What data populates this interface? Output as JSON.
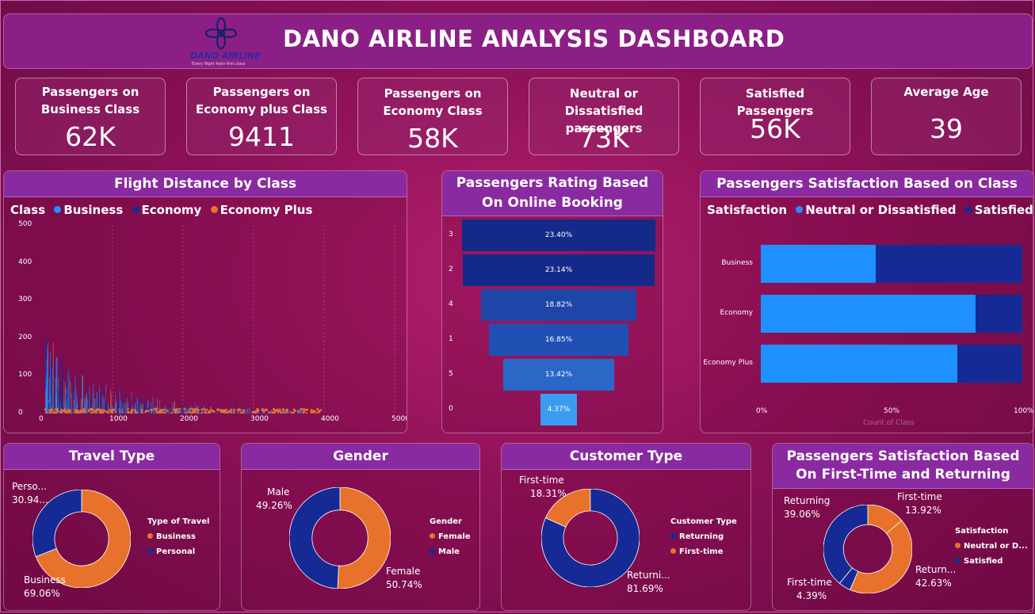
{
  "header": {
    "title": "DANO AIRLINE ANALYSIS DASHBOARD",
    "logo_name": "DANO AIRLINE",
    "logo_tagline": "Every flight feels first class"
  },
  "kpis": [
    {
      "label": "Passengers on Business Class",
      "value": "62K"
    },
    {
      "label": "Passengers on Economy plus Class",
      "value": "9411"
    },
    {
      "label": "Passengers on Economy Class",
      "value": "58K"
    },
    {
      "label": "Neutral or Dissatisfied passengers",
      "value": "73K"
    },
    {
      "label": "Satisfied Passengers",
      "value": "56K"
    },
    {
      "label": "Average Age",
      "value": "39"
    }
  ],
  "flight_distance": {
    "title": "Flight Distance by Class",
    "legend_title": "Class",
    "legend": [
      {
        "label": "Business",
        "color": "#1e90ff"
      },
      {
        "label": "Economy",
        "color": "#1a2a8c"
      },
      {
        "label": "Economy Plus",
        "color": "#e8722c"
      }
    ],
    "y_ticks": [
      "500",
      "400",
      "300",
      "200",
      "100",
      "0"
    ],
    "x_ticks": [
      "0",
      "1000",
      "2000",
      "3000",
      "4000",
      "5000"
    ]
  },
  "online_booking": {
    "title": "Passengers Rating Based On Online Booking",
    "stages": [
      {
        "category": "3",
        "value": "23.40%",
        "color": "#142a88"
      },
      {
        "category": "2",
        "value": "23.14%",
        "color": "#142a88"
      },
      {
        "category": "4",
        "value": "18.82%",
        "color": "#1e46a8"
      },
      {
        "category": "1",
        "value": "16.85%",
        "color": "#2150b4"
      },
      {
        "category": "5",
        "value": "13.42%",
        "color": "#2a68c8"
      },
      {
        "category": "0",
        "value": "4.37%",
        "color": "#3a9cf0"
      }
    ]
  },
  "satisfaction_class": {
    "title": "Passengers Satisfaction Based on Class",
    "legend_title": "Satisfaction",
    "legend": [
      {
        "label": "Neutral or Dissatisfied",
        "color": "#1e90ff"
      },
      {
        "label": "Satisfied",
        "color": "#152a95"
      }
    ],
    "rows": [
      {
        "category": "Business",
        "neutral_pct": 44
      },
      {
        "category": "Economy",
        "neutral_pct": 82
      },
      {
        "category": "Economy Plus",
        "neutral_pct": 75
      }
    ],
    "x_ticks": [
      "0%",
      "50%",
      "100%"
    ],
    "x_axis_label": "Count of Class"
  },
  "travel_type": {
    "title": "Travel Type",
    "legend_title": "Type of Travel",
    "legend": [
      {
        "label": "Business",
        "color": "#e8722c"
      },
      {
        "label": "Personal",
        "color": "#152a95"
      }
    ],
    "slices": [
      {
        "name": "Business",
        "pct": "69.06%",
        "value": 69.06,
        "color": "#e8722c"
      },
      {
        "name": "Perso...",
        "pct": "30.94...",
        "value": 30.94,
        "color": "#152a95"
      }
    ]
  },
  "gender": {
    "title": "Gender",
    "legend_title": "Gender",
    "legend": [
      {
        "label": "Female",
        "color": "#e8722c"
      },
      {
        "label": "Male",
        "color": "#152a95"
      }
    ],
    "slices": [
      {
        "name": "Female",
        "pct": "50.74%",
        "value": 50.74,
        "color": "#e8722c"
      },
      {
        "name": "Male",
        "pct": "49.26%",
        "value": 49.26,
        "color": "#152a95"
      }
    ]
  },
  "customer_type": {
    "title": "Customer Type",
    "legend_title": "Customer Type",
    "legend": [
      {
        "label": "Returning",
        "color": "#152a95"
      },
      {
        "label": "First-time",
        "color": "#e8722c"
      }
    ],
    "slices": [
      {
        "name": "Returni...",
        "pct": "81.69%",
        "value": 81.69,
        "color": "#152a95"
      },
      {
        "name": "First-time",
        "pct": "18.31%",
        "value": 18.31,
        "color": "#e8722c"
      }
    ]
  },
  "first_returning": {
    "title": "Passengers Satisfaction Based On First-Time and Returning",
    "legend_title": "Satisfaction",
    "legend": [
      {
        "label": "Neutral or D...",
        "color": "#e8722c"
      },
      {
        "label": "Satisfied",
        "color": "#152a95"
      }
    ],
    "slices": [
      {
        "name": "First-time",
        "pct": "13.92%",
        "value": 13.92,
        "color": "#e8722c"
      },
      {
        "name": "Return...",
        "pct": "42.63%",
        "value": 42.63,
        "color": "#e8722c"
      },
      {
        "name": "First-time",
        "pct": "4.39%",
        "value": 4.39,
        "color": "#152a95"
      },
      {
        "name": "Returning",
        "pct": "39.06%",
        "value": 39.06,
        "color": "#152a95"
      }
    ]
  },
  "chart_data": [
    {
      "type": "scatter",
      "title": "Flight Distance by Class",
      "legend": [
        "Business",
        "Economy",
        "Economy Plus"
      ],
      "xlim": [
        0,
        5000
      ],
      "ylim": [
        0,
        500
      ]
    },
    {
      "type": "bar",
      "title": "Passengers Rating Based On Online Booking",
      "categories": [
        "3",
        "2",
        "4",
        "1",
        "5",
        "0"
      ],
      "values": [
        23.4,
        23.14,
        18.82,
        16.85,
        13.42,
        4.37
      ]
    },
    {
      "type": "bar",
      "title": "Passengers Satisfaction Based on Class",
      "categories": [
        "Business",
        "Economy",
        "Economy Plus"
      ],
      "series": [
        {
          "name": "Neutral or Dissatisfied",
          "values": [
            44,
            82,
            75
          ]
        },
        {
          "name": "Satisfied",
          "values": [
            56,
            18,
            25
          ]
        }
      ],
      "xlabel": "Count of Class"
    },
    {
      "type": "pie",
      "title": "Travel Type",
      "categories": [
        "Business",
        "Personal"
      ],
      "values": [
        69.06,
        30.94
      ]
    },
    {
      "type": "pie",
      "title": "Gender",
      "categories": [
        "Female",
        "Male"
      ],
      "values": [
        50.74,
        49.26
      ]
    },
    {
      "type": "pie",
      "title": "Customer Type",
      "categories": [
        "Returning",
        "First-time"
      ],
      "values": [
        81.69,
        18.31
      ]
    },
    {
      "type": "pie",
      "title": "Passengers Satisfaction Based On First-Time and Returning",
      "categories": [
        "First-time Neutral",
        "Returning Neutral",
        "First-time Satisfied",
        "Returning Satisfied"
      ],
      "values": [
        13.92,
        42.63,
        4.39,
        39.06
      ]
    }
  ]
}
